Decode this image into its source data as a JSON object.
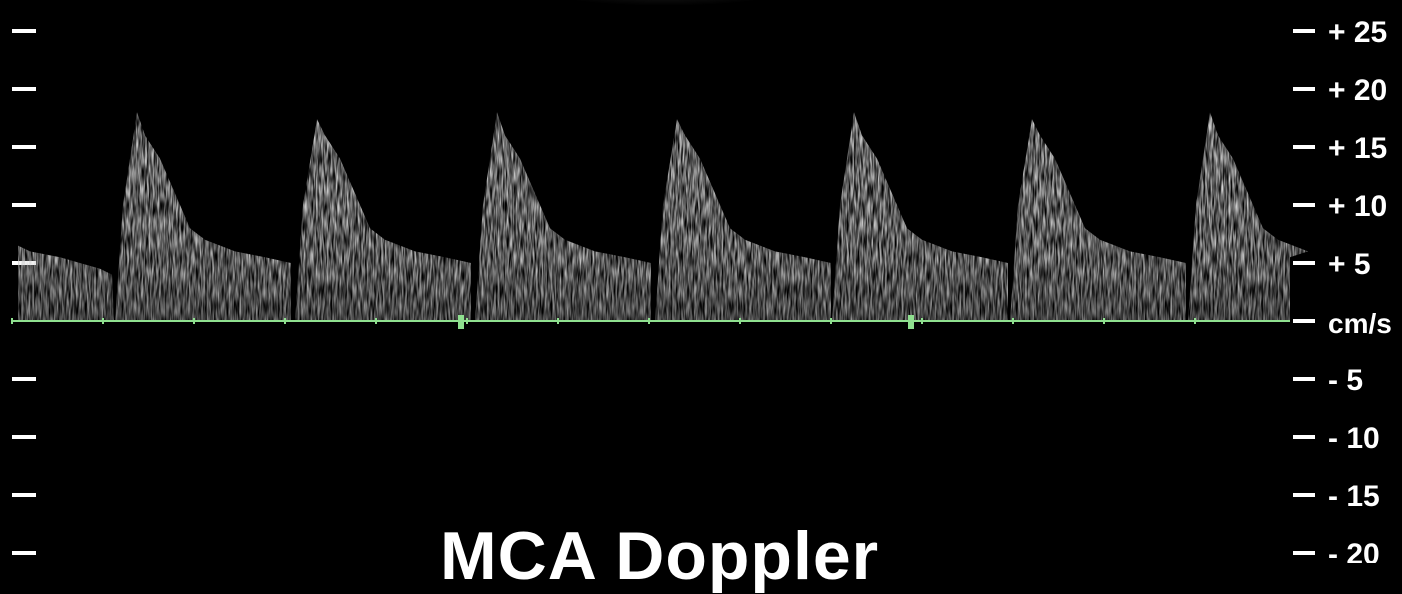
{
  "title": "MCA Doppler",
  "scale": {
    "unit": "cm/s",
    "positive_ticks": [
      "+ 25",
      "+ 20",
      "+ 15",
      "+ 10",
      "+ 5"
    ],
    "negative_ticks": [
      "- 5",
      "- 10",
      "- 15",
      "- 20"
    ]
  },
  "colors": {
    "background": "#000000",
    "baseline": "#8fe08f",
    "tick_marks": "#ffffff",
    "spectrum": "#d8d8d8"
  },
  "waveform": {
    "cycles": 7,
    "peak_velocity_cm_s": 18,
    "end_diastolic_velocity_cm_s": 5
  }
}
